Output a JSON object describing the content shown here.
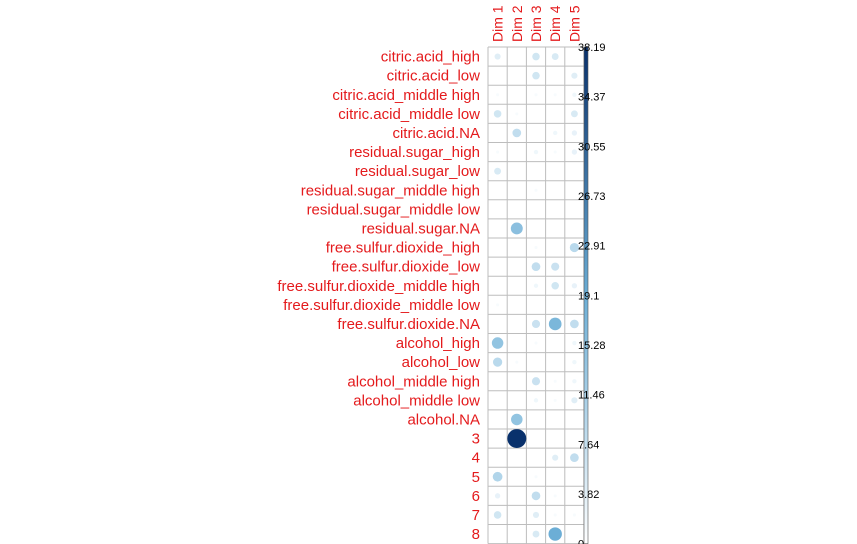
{
  "chart_data": {
    "type": "heatmap",
    "columns": [
      "Dim 1",
      "Dim 2",
      "Dim 3",
      "Dim 4",
      "Dim 5"
    ],
    "rows": [
      "citric.acid_high",
      "citric.acid_low",
      "citric.acid_middle high",
      "citric.acid_middle low",
      "citric.acid.NA",
      "residual.sugar_high",
      "residual.sugar_low",
      "residual.sugar_middle high",
      "residual.sugar_middle low",
      "residual.sugar.NA",
      "free.sulfur.dioxide_high",
      "free.sulfur.dioxide_low",
      "free.sulfur.dioxide_middle high",
      "free.sulfur.dioxide_middle low",
      "free.sulfur.dioxide.NA",
      "alcohol_high",
      "alcohol_low",
      "alcohol_middle high",
      "alcohol_middle low",
      "alcohol.NA",
      "3",
      "4",
      "5",
      "6",
      "7",
      "8"
    ],
    "values": [
      [
        4,
        0,
        6,
        5,
        0
      ],
      [
        0,
        0,
        6,
        0,
        4
      ],
      [
        1,
        0,
        1,
        1,
        2
      ],
      [
        6,
        1,
        0,
        0,
        5
      ],
      [
        0,
        8,
        0,
        2,
        3
      ],
      [
        1,
        0,
        2,
        1,
        3
      ],
      [
        5,
        0,
        0,
        0,
        0
      ],
      [
        0,
        0,
        1,
        0,
        0
      ],
      [
        0,
        0,
        0,
        0,
        0
      ],
      [
        0,
        15,
        0,
        0,
        0
      ],
      [
        0,
        0,
        1,
        0,
        9
      ],
      [
        0,
        0,
        8,
        7,
        0
      ],
      [
        0,
        0,
        2,
        6,
        3
      ],
      [
        1,
        0,
        0,
        0,
        0
      ],
      [
        0,
        0,
        7,
        17,
        8
      ],
      [
        14,
        0,
        1,
        0,
        2
      ],
      [
        9,
        1,
        0,
        0,
        2
      ],
      [
        0,
        0,
        7,
        1,
        2
      ],
      [
        0,
        0,
        2,
        1,
        4
      ],
      [
        0,
        14,
        0,
        0,
        0
      ],
      [
        0,
        38,
        0,
        0,
        0
      ],
      [
        0,
        0,
        0,
        4,
        8
      ],
      [
        10,
        0,
        1,
        0,
        0
      ],
      [
        3,
        0,
        8,
        1,
        0
      ],
      [
        6,
        0,
        4,
        1,
        1
      ],
      [
        0,
        0,
        5,
        19,
        0
      ]
    ],
    "colorbar_ticks": [
      "38.19",
      "34.37",
      "30.55",
      "26.73",
      "22.91",
      "19.1",
      "15.28",
      "11.46",
      "7.64",
      "3.82",
      "0"
    ],
    "range": [
      0,
      38.19
    ],
    "colors": {
      "label": "#e41a1c",
      "low": "#ffffff",
      "mid": "#6baed6",
      "high": "#08306b",
      "grid": "#bdbdbd",
      "tick_text": "#000000"
    }
  }
}
